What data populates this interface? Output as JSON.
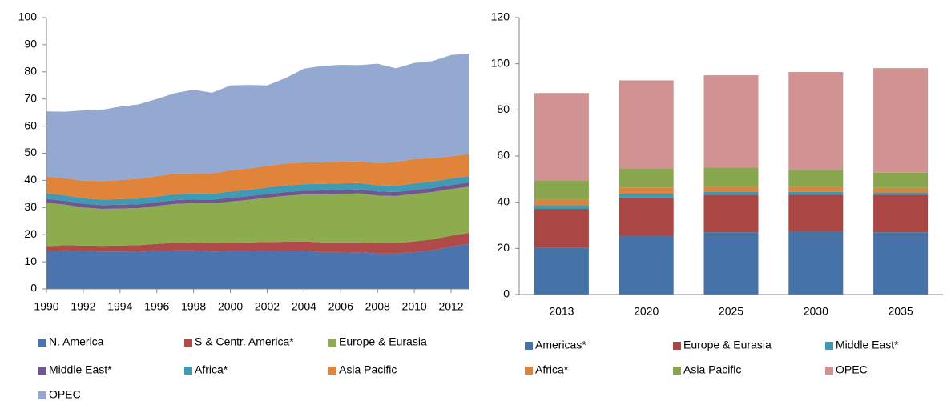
{
  "chart_data": [
    {
      "type": "area",
      "x": [
        1990,
        1991,
        1992,
        1993,
        1994,
        1995,
        1996,
        1997,
        1998,
        1999,
        2000,
        2001,
        2002,
        2003,
        2004,
        2005,
        2006,
        2007,
        2008,
        2009,
        2010,
        2011,
        2012,
        2013
      ],
      "xlim": [
        1990,
        2013
      ],
      "xticks": [
        1990,
        1992,
        1994,
        1996,
        1998,
        2000,
        2002,
        2004,
        2006,
        2008,
        2010,
        2012
      ],
      "ylim": [
        0,
        100
      ],
      "yticks": [
        0,
        10,
        20,
        30,
        40,
        50,
        60,
        70,
        80,
        90,
        100
      ],
      "series": [
        {
          "name": "N. America",
          "color": "#4a74ad",
          "values": [
            14,
            14.2,
            14,
            13.8,
            13.8,
            13.7,
            14,
            14.2,
            14.2,
            13.8,
            13.9,
            13.9,
            14,
            14.1,
            14.1,
            13.6,
            13.6,
            13.5,
            13.1,
            13.1,
            13.6,
            14.3,
            15.6,
            16.7
          ]
        },
        {
          "name": "S & Centr. America*",
          "color": "#b04a48",
          "values": [
            1.8,
            1.9,
            2,
            2.1,
            2.2,
            2.4,
            2.6,
            2.8,
            2.9,
            3,
            3.1,
            3.3,
            3.3,
            3.3,
            3.4,
            3.6,
            3.6,
            3.7,
            3.7,
            3.8,
            3.9,
            4,
            4,
            4
          ]
        },
        {
          "name": "Europe & Eurasia",
          "color": "#8cac4e",
          "values": [
            16,
            15,
            14,
            13.6,
            13.6,
            13.7,
            14,
            14.3,
            14.5,
            14.7,
            15.2,
            15.6,
            16.3,
            16.9,
            17.3,
            17.6,
            17.8,
            18,
            17.6,
            17.3,
            17.5,
            17.4,
            17.2,
            17
          ]
        },
        {
          "name": "Middle East*",
          "color": "#71578f",
          "values": [
            1.4,
            1.4,
            1.4,
            1.4,
            1.4,
            1.4,
            1.4,
            1.4,
            1.4,
            1.4,
            1.4,
            1.4,
            1.4,
            1.4,
            1.4,
            1.5,
            1.5,
            1.5,
            1.5,
            1.5,
            1.5,
            1.5,
            1.5,
            1.6
          ]
        },
        {
          "name": "Africa*",
          "color": "#3f9bb4",
          "values": [
            2,
            2,
            2,
            2,
            2.1,
            2.1,
            2.1,
            2.2,
            2.2,
            2.2,
            2.3,
            2.3,
            2.4,
            2.4,
            2.4,
            2.4,
            2.4,
            2.3,
            2.3,
            2.3,
            2.4,
            2.4,
            2.4,
            2.3
          ]
        },
        {
          "name": "Asia Pacific",
          "color": "#e0843c",
          "values": [
            6.3,
            6.3,
            6.5,
            6.8,
            7,
            7.3,
            7.5,
            7.6,
            7.4,
            7.5,
            7.8,
            7.9,
            8,
            8.1,
            8,
            8,
            8,
            8,
            8.2,
            8.8,
            9,
            8.6,
            8.2,
            8.1
          ]
        },
        {
          "name": "OPEC",
          "color": "#93a9d1",
          "values": [
            23.9,
            24.5,
            25.9,
            26.3,
            27.1,
            27.4,
            28.4,
            29.7,
            30.8,
            29.7,
            31.3,
            30.8,
            29.6,
            31.5,
            34.6,
            35.5,
            35.7,
            35.5,
            36.6,
            34.5,
            35.4,
            35.8,
            37.3,
            37
          ]
        }
      ]
    },
    {
      "type": "stacked_bar",
      "categories": [
        "2013",
        "2020",
        "2025",
        "2030",
        "2035"
      ],
      "ylim": [
        0,
        120
      ],
      "yticks": [
        0,
        20,
        40,
        60,
        80,
        100,
        120
      ],
      "series": [
        {
          "name": "Americas*",
          "color": "#4572a7",
          "values": [
            20.2,
            25.5,
            27,
            27.5,
            27
          ]
        },
        {
          "name": "Europe & Eurasia",
          "color": "#aa4643",
          "values": [
            16.9,
            16.5,
            16,
            15.8,
            16.2
          ]
        },
        {
          "name": "Middle East*",
          "color": "#4198af",
          "values": [
            1.6,
            1.6,
            1.4,
            1.2,
            1
          ]
        },
        {
          "name": "Africa*",
          "color": "#db843d",
          "values": [
            2.6,
            2.8,
            2.4,
            2.3,
            2
          ]
        },
        {
          "name": "Asia Pacific",
          "color": "#89a54e",
          "values": [
            8.2,
            8.2,
            8.2,
            7.2,
            6.6
          ]
        },
        {
          "name": "OPEC",
          "color": "#d19392",
          "values": [
            37.8,
            38.2,
            40,
            42.4,
            45.3
          ]
        }
      ]
    }
  ]
}
